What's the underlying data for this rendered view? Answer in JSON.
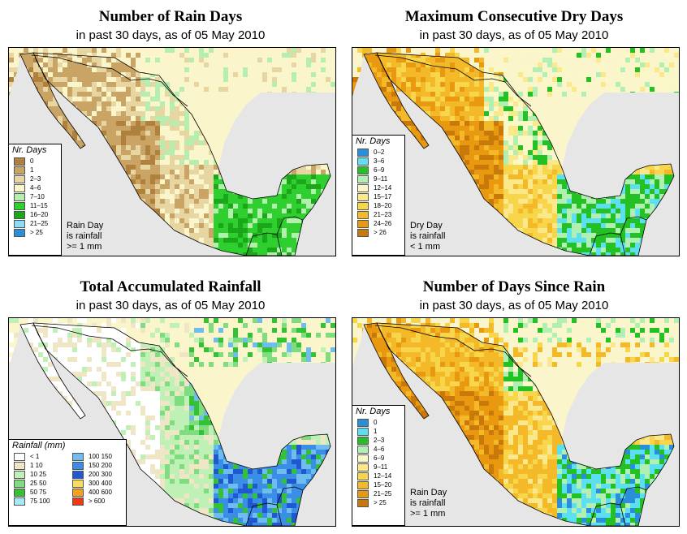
{
  "panels": [
    {
      "title": "Number of Rain Days",
      "subtitle_prefix": "in past 30 days, as of ",
      "date": "05 May 2010",
      "legend_title": "Nr. Days",
      "legend": [
        {
          "label": "0",
          "color": "#b0813c"
        },
        {
          "label": "1",
          "color": "#c9a464"
        },
        {
          "label": "2–3",
          "color": "#e8d6a2"
        },
        {
          "label": "4–6",
          "color": "#fbf5cc"
        },
        {
          "label": "7–10",
          "color": "#b5efb0"
        },
        {
          "label": "11–15",
          "color": "#2fcf2f"
        },
        {
          "label": "16–20",
          "color": "#1aa71a"
        },
        {
          "label": "21–25",
          "color": "#8bdcf5"
        },
        {
          "label": "> 25",
          "color": "#2a8fd8"
        }
      ],
      "note": [
        "Rain Day",
        "is rainfall",
        ">= 1 mm"
      ]
    },
    {
      "title": "Maximum Consecutive Dry Days",
      "subtitle_prefix": "in past 30 days, as of ",
      "date": "05 May 2010",
      "legend_title": "Nr. Days",
      "legend": [
        {
          "label": "0–2",
          "color": "#2a8fd8"
        },
        {
          "label": "3–6",
          "color": "#5ce0f0"
        },
        {
          "label": "6–9",
          "color": "#23c123"
        },
        {
          "label": "9–11",
          "color": "#b2efb2"
        },
        {
          "label": "12–14",
          "color": "#fbf8c8"
        },
        {
          "label": "15–17",
          "color": "#fbe88a"
        },
        {
          "label": "18–20",
          "color": "#f7d64c"
        },
        {
          "label": "21–23",
          "color": "#f3b928"
        },
        {
          "label": "24–26",
          "color": "#e8990f"
        },
        {
          "label": "> 26",
          "color": "#c9780a"
        }
      ],
      "note": [
        "Dry Day",
        "is rainfall",
        "< 1 mm"
      ]
    },
    {
      "title": "Total Accumulated Rainfall",
      "subtitle_prefix": "in past 30 days, as of ",
      "date": "05 May 2010",
      "legend_title": "Rainfall (mm)",
      "legend_col1": [
        {
          "label": "< 1",
          "color": "#ffffff"
        },
        {
          "label": "1   10",
          "color": "#efe6c6"
        },
        {
          "label": "10   25",
          "color": "#bff0b6"
        },
        {
          "label": "25   50",
          "color": "#7fdc7f"
        },
        {
          "label": "50   75",
          "color": "#33c233"
        },
        {
          "label": "75  100",
          "color": "#a8e8f5"
        }
      ],
      "legend_col2": [
        {
          "label": "100  150",
          "color": "#6fbdf0"
        },
        {
          "label": "150  200",
          "color": "#3a8ee6"
        },
        {
          "label": "200  300",
          "color": "#1f58d0"
        },
        {
          "label": "300  400",
          "color": "#f7de5a"
        },
        {
          "label": "400  600",
          "color": "#f7a21a"
        },
        {
          "label": "> 600",
          "color": "#ee3a10"
        }
      ]
    },
    {
      "title": "Number of Days Since Rain",
      "subtitle_prefix": "in past 30 days, as of ",
      "date": "05 May 2010",
      "legend_title": "Nr. Days",
      "legend": [
        {
          "label": "0",
          "color": "#2a8fd8"
        },
        {
          "label": "1",
          "color": "#5ce0f0"
        },
        {
          "label": "2–3",
          "color": "#23c123"
        },
        {
          "label": "4–6",
          "color": "#b2efb2"
        },
        {
          "label": "6–9",
          "color": "#fbf8c8"
        },
        {
          "label": "9–11",
          "color": "#fbe88a"
        },
        {
          "label": "12–14",
          "color": "#f7d64c"
        },
        {
          "label": "15–20",
          "color": "#f3b928"
        },
        {
          "label": "21–25",
          "color": "#e8990f"
        },
        {
          "label": "> 25",
          "color": "#c9780a"
        }
      ],
      "note": [
        "Rain Day",
        "is rainfall",
        ">= 1 mm"
      ]
    }
  ]
}
